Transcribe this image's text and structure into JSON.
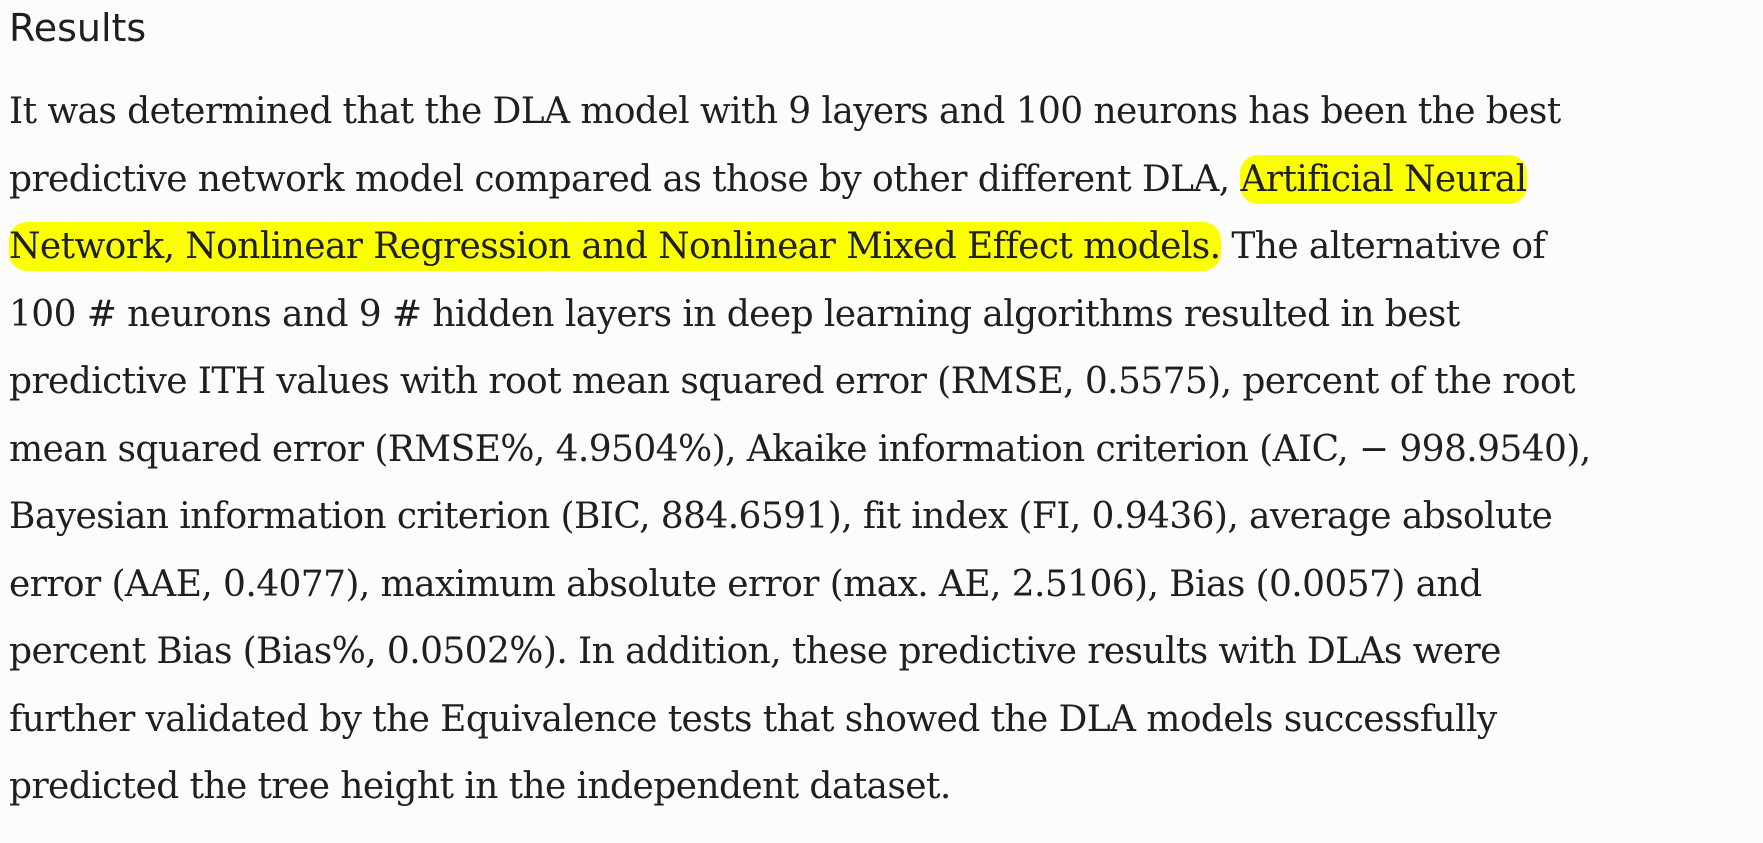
{
  "heading": "Results",
  "highlight_color": "#fbff00",
  "lines": [
    {
      "text": "It was determined that the DLA model with 9 layers and 100 neurons has been the best"
    },
    {
      "before": "predictive network model compared as those by other different DLA, ",
      "highlight": "Artificial Neural"
    },
    {
      "highlight": "Network, Nonlinear Regression and Nonlinear Mixed Effect models.",
      "after": " The alternative of"
    },
    {
      "text": "100 # neurons and 9 # hidden layers in deep learning algorithms resulted in best"
    },
    {
      "text": "predictive ITH values with root mean squared error (RMSE, 0.5575), percent of the root"
    },
    {
      "text": "mean squared error (RMSE%, 4.9504%), Akaike information criterion (AIC, − 998.9540),"
    },
    {
      "text": "Bayesian information criterion (BIC, 884.6591), fit index (FI, 0.9436), average absolute"
    },
    {
      "text": "error (AAE, 0.4077), maximum absolute error (max. AE, 2.5106), Bias (0.0057) and"
    },
    {
      "text": "percent Bias (Bias%, 0.0502%). In addition, these predictive results with DLAs were"
    },
    {
      "text": "further validated by the Equivalence tests that showed the DLA models successfully"
    },
    {
      "text": "predicted the tree height in the independent dataset."
    }
  ]
}
